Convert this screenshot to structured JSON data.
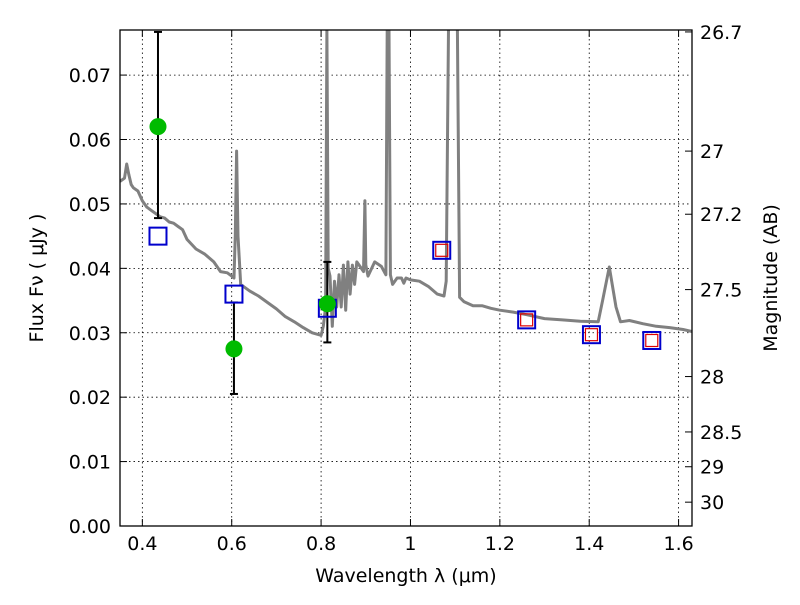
{
  "chart_data": {
    "type": "scatter",
    "xlabel": "Wavelength  λ (μm)",
    "ylabel": "Flux  Fν  ( μJy )",
    "y2label": "Magnitude (AB)",
    "xlim": [
      0.35,
      1.63
    ],
    "ylim": [
      0.0,
      0.077
    ],
    "x_ticks": [
      {
        "value": 0.4,
        "label": "0.4"
      },
      {
        "value": 0.6,
        "label": "0.6"
      },
      {
        "value": 0.8,
        "label": "0.8"
      },
      {
        "value": 1.0,
        "label": "1"
      },
      {
        "value": 1.2,
        "label": "1.2"
      },
      {
        "value": 1.4,
        "label": "1.4"
      },
      {
        "value": 1.6,
        "label": "1.6"
      }
    ],
    "y_ticks": [
      {
        "value": 0.0,
        "label": "0.00"
      },
      {
        "value": 0.01,
        "label": "0.01"
      },
      {
        "value": 0.02,
        "label": "0.02"
      },
      {
        "value": 0.03,
        "label": "0.03"
      },
      {
        "value": 0.04,
        "label": "0.04"
      },
      {
        "value": 0.05,
        "label": "0.05"
      },
      {
        "value": 0.06,
        "label": "0.06"
      },
      {
        "value": 0.07,
        "label": "0.07"
      }
    ],
    "y2_ticks": [
      {
        "flux": 0.0767,
        "label": "26.7"
      },
      {
        "flux": 0.0582,
        "label": "27"
      },
      {
        "flux": 0.0484,
        "label": "27.2"
      },
      {
        "flux": 0.0367,
        "label": "27.5"
      },
      {
        "flux": 0.0232,
        "label": "28"
      },
      {
        "flux": 0.0146,
        "label": "28.5"
      },
      {
        "flux": 0.0092,
        "label": "29"
      },
      {
        "flux": 0.0037,
        "label": "30"
      }
    ],
    "grid": true,
    "colors": {
      "spectrum": "#808080",
      "observed": "#00bb00",
      "model_square": "#0000cc",
      "model_small_square": "#dd0000",
      "errorbar": "#000000"
    },
    "series": [
      {
        "kind": "line",
        "points": [
          [
            0.35,
            0.0535
          ],
          [
            0.36,
            0.054
          ],
          [
            0.365,
            0.0562
          ],
          [
            0.37,
            0.0545
          ],
          [
            0.375,
            0.053
          ],
          [
            0.38,
            0.0525
          ],
          [
            0.39,
            0.052
          ],
          [
            0.4,
            0.0505
          ],
          [
            0.41,
            0.0495
          ],
          [
            0.42,
            0.049
          ],
          [
            0.43,
            0.0485
          ],
          [
            0.44,
            0.048
          ],
          [
            0.45,
            0.0478
          ],
          [
            0.46,
            0.0472
          ],
          [
            0.47,
            0.047
          ],
          [
            0.48,
            0.0465
          ],
          [
            0.49,
            0.046
          ],
          [
            0.5,
            0.0445
          ],
          [
            0.52,
            0.043
          ],
          [
            0.54,
            0.0422
          ],
          [
            0.56,
            0.041
          ],
          [
            0.575,
            0.0395
          ],
          [
            0.59,
            0.0393
          ],
          [
            0.6,
            0.0388
          ],
          [
            0.605,
            0.0385
          ],
          [
            0.608,
            0.0452
          ],
          [
            0.611,
            0.0582
          ],
          [
            0.614,
            0.045
          ],
          [
            0.62,
            0.0375
          ],
          [
            0.64,
            0.0365
          ],
          [
            0.66,
            0.0357
          ],
          [
            0.68,
            0.0347
          ],
          [
            0.7,
            0.0337
          ],
          [
            0.72,
            0.0325
          ],
          [
            0.74,
            0.0317
          ],
          [
            0.76,
            0.0308
          ],
          [
            0.78,
            0.03
          ],
          [
            0.8,
            0.0296
          ],
          [
            0.805,
            0.031
          ],
          [
            0.81,
            0.034
          ],
          [
            0.813,
            0.0772
          ],
          [
            0.816,
            0.04
          ],
          [
            0.82,
            0.0388
          ],
          [
            0.825,
            0.031
          ],
          [
            0.83,
            0.038
          ],
          [
            0.835,
            0.034
          ],
          [
            0.84,
            0.039
          ],
          [
            0.845,
            0.034
          ],
          [
            0.85,
            0.0405
          ],
          [
            0.855,
            0.0335
          ],
          [
            0.86,
            0.041
          ],
          [
            0.865,
            0.036
          ],
          [
            0.87,
            0.0405
          ],
          [
            0.875,
            0.0375
          ],
          [
            0.88,
            0.041
          ],
          [
            0.89,
            0.04
          ],
          [
            0.895,
            0.0395
          ],
          [
            0.898,
            0.0505
          ],
          [
            0.9,
            0.0405
          ],
          [
            0.905,
            0.0388
          ],
          [
            0.92,
            0.041
          ],
          [
            0.935,
            0.0403
          ],
          [
            0.945,
            0.039
          ],
          [
            0.948,
            0.0772
          ],
          [
            0.952,
            0.0772
          ],
          [
            0.955,
            0.039
          ],
          [
            0.96,
            0.0375
          ],
          [
            0.97,
            0.0385
          ],
          [
            0.98,
            0.0385
          ],
          [
            0.985,
            0.0377
          ],
          [
            0.99,
            0.0385
          ],
          [
            1.0,
            0.0382
          ],
          [
            1.02,
            0.038
          ],
          [
            1.04,
            0.0372
          ],
          [
            1.06,
            0.036
          ],
          [
            1.075,
            0.0357
          ],
          [
            1.08,
            0.038
          ],
          [
            1.085,
            0.0772
          ],
          [
            1.095,
            0.0772
          ],
          [
            1.1,
            0.0772
          ],
          [
            1.105,
            0.0772
          ],
          [
            1.11,
            0.0355
          ],
          [
            1.12,
            0.0348
          ],
          [
            1.14,
            0.0342
          ],
          [
            1.16,
            0.0342
          ],
          [
            1.18,
            0.0338
          ],
          [
            1.2,
            0.0335
          ],
          [
            1.23,
            0.0332
          ],
          [
            1.26,
            0.0328
          ],
          [
            1.3,
            0.0322
          ],
          [
            1.34,
            0.032
          ],
          [
            1.38,
            0.0318
          ],
          [
            1.42,
            0.0317
          ],
          [
            1.43,
            0.035
          ],
          [
            1.445,
            0.0402
          ],
          [
            1.46,
            0.034
          ],
          [
            1.47,
            0.0317
          ],
          [
            1.49,
            0.0319
          ],
          [
            1.52,
            0.0314
          ],
          [
            1.55,
            0.031
          ],
          [
            1.58,
            0.0308
          ],
          [
            1.61,
            0.0305
          ],
          [
            1.63,
            0.0302
          ]
        ]
      },
      {
        "kind": "errorbar-points",
        "points": [
          {
            "x": 0.435,
            "y": 0.062,
            "lo": 0.0478,
            "hi": 0.0767
          },
          {
            "x": 0.605,
            "y": 0.0275,
            "lo": 0.0205,
            "hi": 0.0347
          },
          {
            "x": 0.814,
            "y": 0.0345,
            "lo": 0.0285,
            "hi": 0.041
          }
        ]
      },
      {
        "kind": "large-squares",
        "points": [
          {
            "x": 0.435,
            "y": 0.045
          },
          {
            "x": 0.605,
            "y": 0.036
          },
          {
            "x": 0.814,
            "y": 0.0338
          },
          {
            "x": 1.07,
            "y": 0.0428
          },
          {
            "x": 1.26,
            "y": 0.032
          },
          {
            "x": 1.405,
            "y": 0.0297
          },
          {
            "x": 1.54,
            "y": 0.0288
          }
        ]
      },
      {
        "kind": "small-squares",
        "points": [
          {
            "x": 1.07,
            "y": 0.0428
          },
          {
            "x": 1.26,
            "y": 0.032
          },
          {
            "x": 1.405,
            "y": 0.0297
          },
          {
            "x": 1.54,
            "y": 0.0288
          }
        ]
      }
    ]
  }
}
